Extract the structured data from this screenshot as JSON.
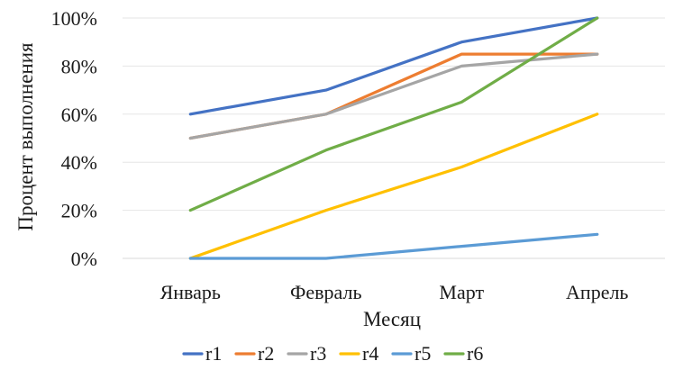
{
  "chart_data": {
    "type": "line",
    "title": "",
    "xlabel": "Месяц",
    "ylabel": "Процент выполнения",
    "categories": [
      "Январь",
      "Февраль",
      "Март",
      "Апрель"
    ],
    "ylim": [
      0,
      100
    ],
    "yticks": [
      "0%",
      "20%",
      "40%",
      "60%",
      "80%",
      "100%"
    ],
    "ytick_values": [
      0,
      20,
      40,
      60,
      80,
      100
    ],
    "grid": true,
    "legend": "bottom",
    "series": [
      {
        "name": "r1",
        "color": "#4472c4",
        "values": [
          60,
          70,
          90,
          100
        ]
      },
      {
        "name": "r2",
        "color": "#ed7d31",
        "values": [
          50,
          60,
          85,
          85
        ]
      },
      {
        "name": "r3",
        "color": "#a5a5a5",
        "values": [
          50,
          60,
          80,
          85
        ]
      },
      {
        "name": "r4",
        "color": "#ffc000",
        "values": [
          0,
          20,
          38,
          60
        ]
      },
      {
        "name": "r5",
        "color": "#5b9bd5",
        "values": [
          0,
          0,
          5,
          10
        ]
      },
      {
        "name": "r6",
        "color": "#70ad47",
        "values": [
          20,
          45,
          65,
          100
        ]
      }
    ]
  }
}
